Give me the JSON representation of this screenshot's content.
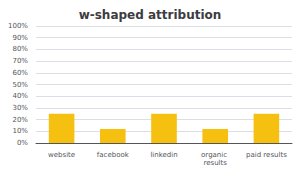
{
  "chart_data": {
    "type": "bar",
    "title": "w-shaped attribution",
    "categories": [
      "website",
      "facebook",
      "linkedin",
      "organic results",
      "paid results"
    ],
    "values": [
      0.25,
      0.12,
      0.25,
      0.12,
      0.25
    ],
    "color": "#F5C010",
    "ylim": [
      0,
      1.0
    ],
    "yticks": [
      {
        "value": 0,
        "label": "0%"
      },
      {
        "value": 0.1,
        "label": "10%"
      },
      {
        "value": 0.2,
        "label": "20%"
      },
      {
        "value": 0.3,
        "label": "30%"
      },
      {
        "value": 0.4,
        "label": "40%"
      },
      {
        "value": 0.5,
        "label": "50%"
      },
      {
        "value": 0.6,
        "label": "60%"
      },
      {
        "value": 0.7,
        "label": "70%"
      },
      {
        "value": 0.8,
        "label": "80%"
      },
      {
        "value": 0.9,
        "label": "90%"
      },
      {
        "value": 1.0,
        "label": "100%"
      }
    ],
    "grid": true
  }
}
